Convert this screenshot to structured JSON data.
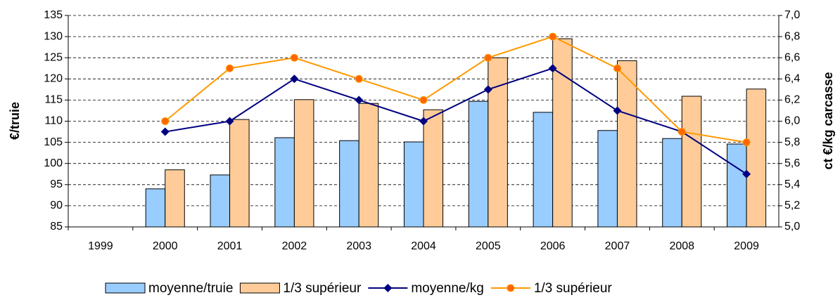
{
  "chart_data": {
    "type": "bar",
    "y_label": "€/truie",
    "y2_label": "ct €/kg carcasse",
    "categories": [
      "1999",
      "2000",
      "2001",
      "2002",
      "2003",
      "2004",
      "2005",
      "2006",
      "2007",
      "2008",
      "2009"
    ],
    "series": [
      {
        "name": "moyenne/truie",
        "type": "bar",
        "color": "#99ccff",
        "values": [
          null,
          94.0,
          97.3,
          106.1,
          105.4,
          105.1,
          114.7,
          112.1,
          107.8,
          105.9,
          104.6
        ]
      },
      {
        "name": "1/3 supérieur",
        "type": "bar",
        "color": "#ffcc99",
        "values": [
          null,
          98.5,
          110.4,
          115.1,
          114.2,
          112.7,
          125.0,
          129.5,
          124.3,
          115.9,
          117.6
        ]
      },
      {
        "name": "moyenne/kg",
        "type": "line",
        "axis": "y2",
        "color": "#000080",
        "marker": "diamond",
        "values": [
          null,
          5.9,
          6.0,
          6.4,
          6.2,
          6.0,
          6.3,
          6.5,
          6.1,
          5.9,
          5.5
        ]
      },
      {
        "name": "1/3 supérieur",
        "type": "line",
        "axis": "y2",
        "color": "#ff9900",
        "marker": "circle",
        "values": [
          null,
          6.0,
          6.5,
          6.6,
          6.4,
          6.2,
          6.6,
          6.8,
          6.5,
          5.9,
          5.8
        ]
      }
    ],
    "ylim": [
      85,
      135
    ],
    "yticks": [
      85,
      90,
      95,
      100,
      105,
      110,
      115,
      120,
      125,
      130,
      135
    ],
    "y2lim": [
      5,
      7
    ],
    "y2ticks": [
      {
        "value": 5,
        "label": "5,0"
      },
      {
        "value": 5.2,
        "label": "5,2"
      },
      {
        "value": 5.4,
        "label": "5,4"
      },
      {
        "value": 5.6,
        "label": "5,6"
      },
      {
        "value": 5.8,
        "label": "5,8"
      },
      {
        "value": 6,
        "label": "6,0"
      },
      {
        "value": 6.2,
        "label": "6,2"
      },
      {
        "value": 6.4,
        "label": "6,4"
      },
      {
        "value": 6.6,
        "label": "6,6"
      },
      {
        "value": 6.8,
        "label": "6,8"
      },
      {
        "value": 7,
        "label": "7,0"
      }
    ],
    "grid": true,
    "legend": "bottom"
  }
}
